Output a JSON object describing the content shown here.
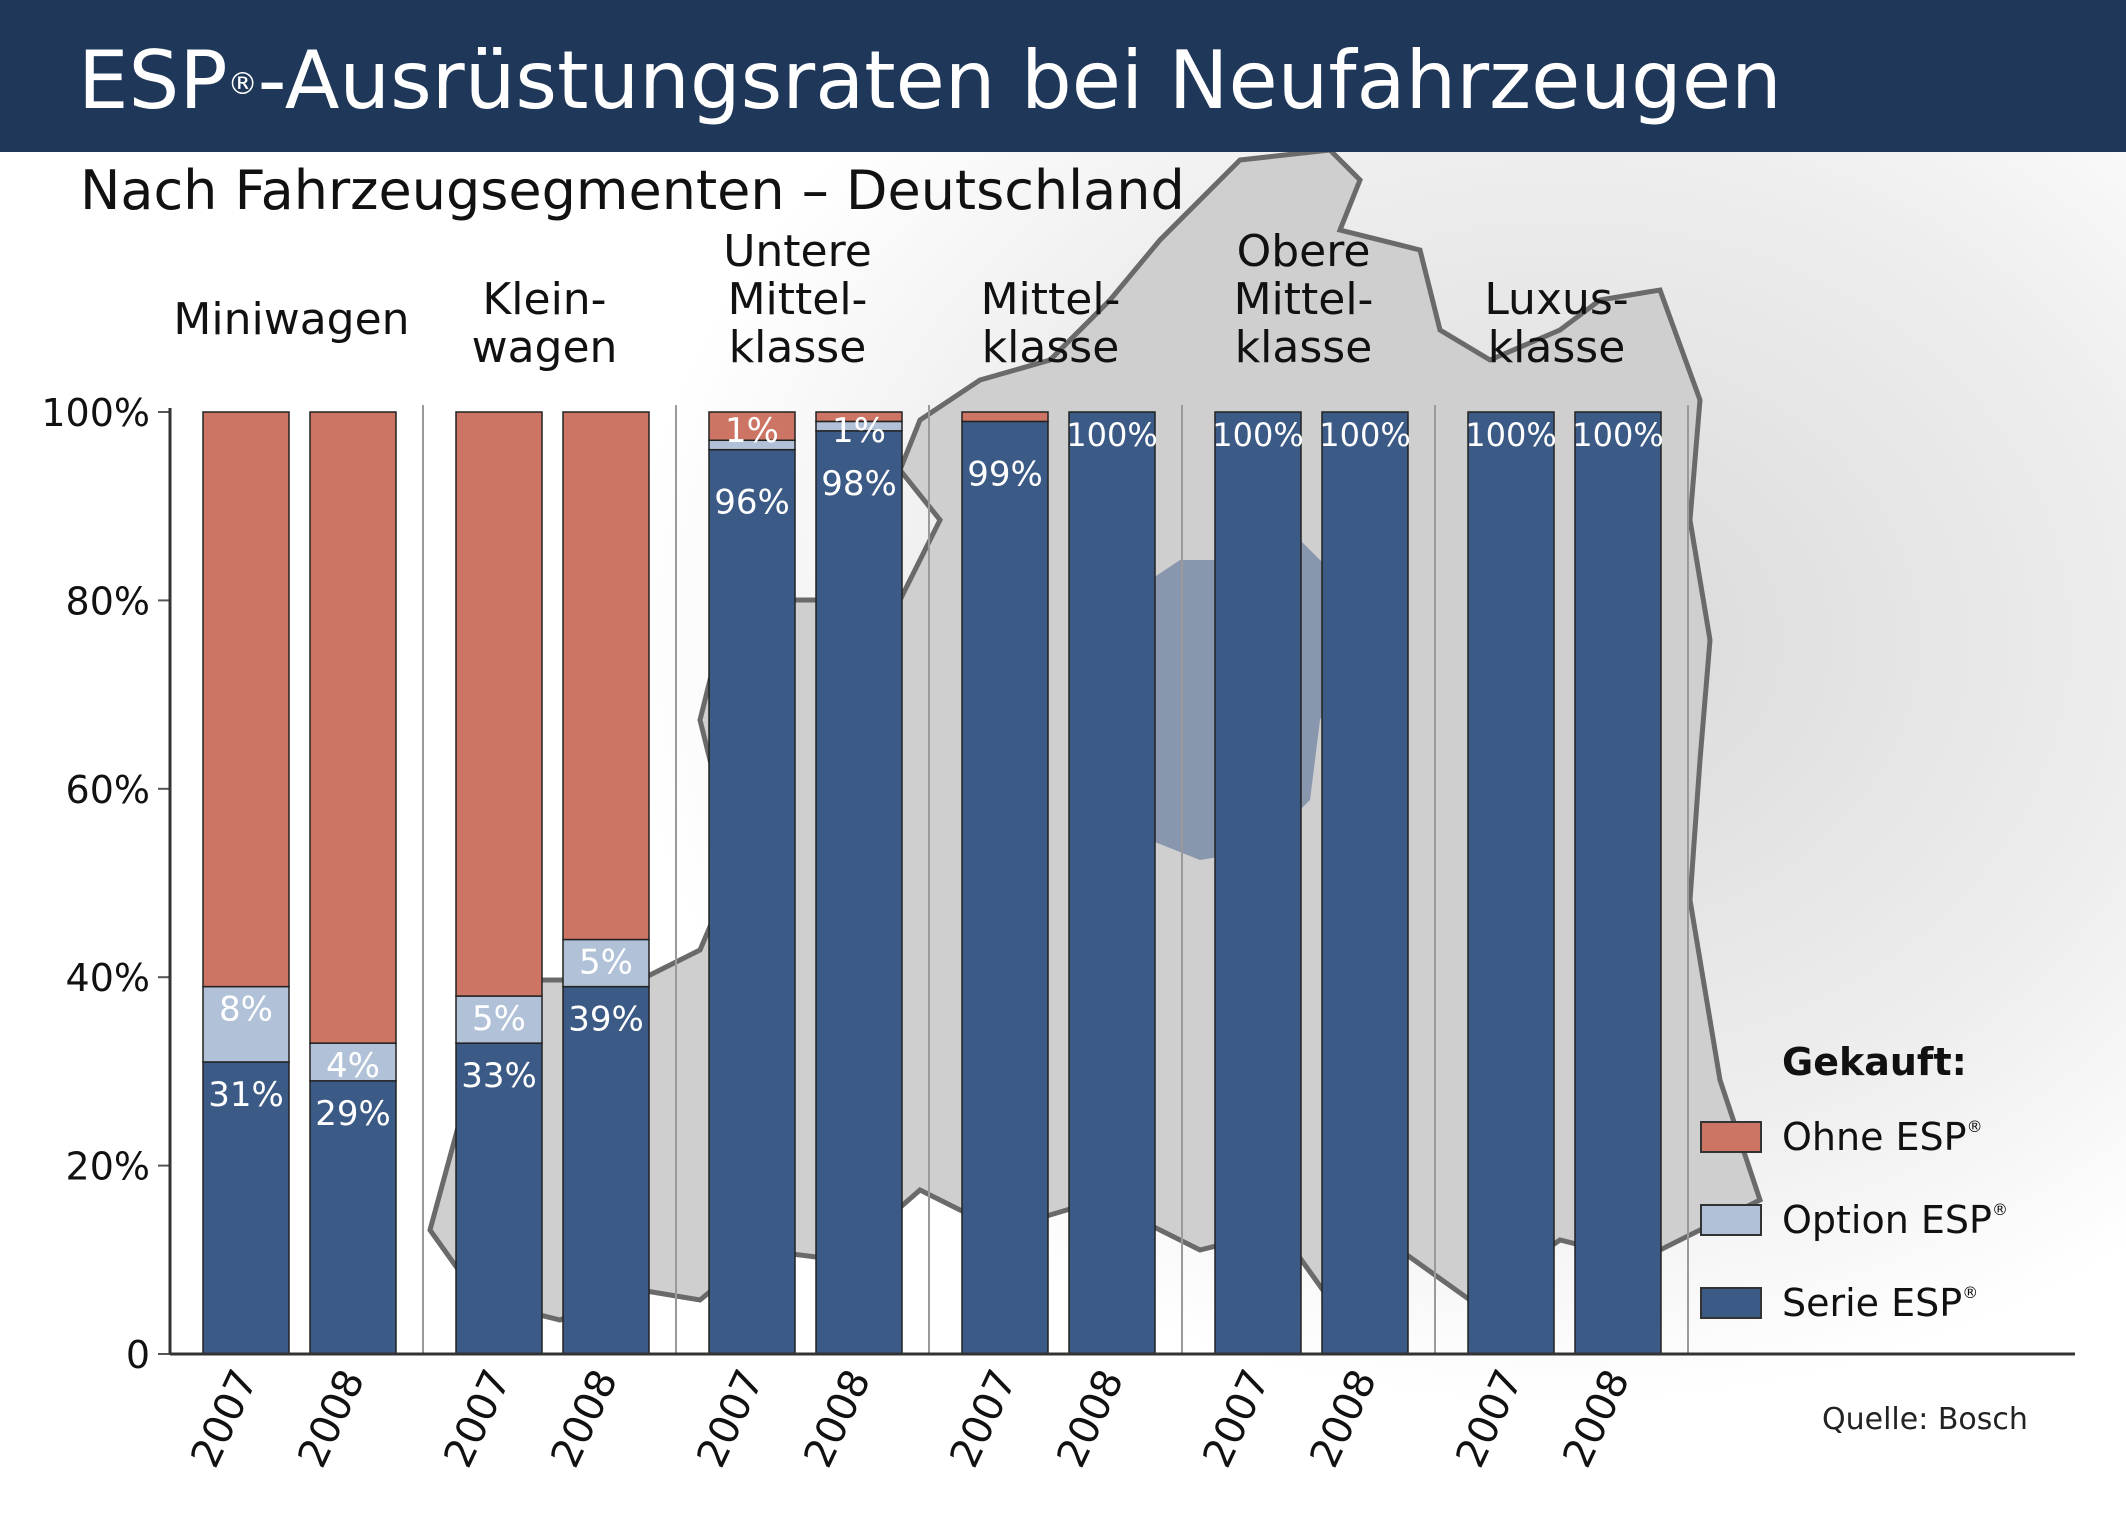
{
  "title_main": "ESP",
  "title_reg": "®",
  "title_rest": "-Ausrüstungsraten bei Neufahrzeugen",
  "subtitle": "Nach Fahrzeugsegmenten – Deutschland",
  "colors": {
    "header_bg": "#1f3759",
    "ohne": "#cd7565",
    "option": "#b1c2d8",
    "serie": "#3b5a85"
  },
  "legend": {
    "title": "Gekauft:",
    "reg": "®",
    "items": [
      {
        "key": "ohne",
        "label": "Ohne ESP",
        "color": "#cd7565"
      },
      {
        "key": "option",
        "label": "Option ESP",
        "color": "#b1c2d8"
      },
      {
        "key": "serie",
        "label": "Serie ESP",
        "color": "#3b5a85"
      }
    ]
  },
  "source": "Quelle: Bosch",
  "chart_data": {
    "type": "bar",
    "stacked": true,
    "ylim": [
      0,
      100
    ],
    "yticks": [
      "0",
      "20%",
      "40%",
      "60%",
      "80%",
      "100%"
    ],
    "ytick_values": [
      0,
      20,
      40,
      60,
      80,
      100
    ],
    "grid": false,
    "groups": [
      {
        "label_lines": [
          "Miniwagen"
        ],
        "years": [
          "2007",
          "2008"
        ],
        "serie": [
          31,
          29
        ],
        "option": [
          8,
          4
        ],
        "ohne": [
          61,
          67
        ],
        "serie_labels": [
          "31%",
          "29%"
        ],
        "option_labels": [
          "8%",
          "4%"
        ]
      },
      {
        "label_lines": [
          "Klein-",
          "wagen"
        ],
        "years": [
          "2007",
          "2008"
        ],
        "serie": [
          33,
          39
        ],
        "option": [
          5,
          5
        ],
        "ohne": [
          62,
          56
        ],
        "serie_labels": [
          "33%",
          "39%"
        ],
        "option_labels": [
          "5%",
          "5%"
        ]
      },
      {
        "label_lines": [
          "Untere",
          "Mittel-",
          "klasse"
        ],
        "years": [
          "2007",
          "2008"
        ],
        "serie": [
          96,
          98
        ],
        "option": [
          1,
          1
        ],
        "ohne": [
          3,
          1
        ],
        "serie_labels": [
          "96%",
          "98%"
        ],
        "option_labels": [
          "1%",
          "1%"
        ]
      },
      {
        "label_lines": [
          "Mittel-",
          "klasse"
        ],
        "years": [
          "2007",
          "2008"
        ],
        "serie": [
          99,
          100
        ],
        "option": [
          0,
          0
        ],
        "ohne": [
          1,
          0
        ],
        "serie_labels": [
          "99%",
          "100%"
        ],
        "option_labels": [
          "",
          ""
        ]
      },
      {
        "label_lines": [
          "Obere",
          "Mittel-",
          "klasse"
        ],
        "years": [
          "2007",
          "2008"
        ],
        "serie": [
          100,
          100
        ],
        "option": [
          0,
          0
        ],
        "ohne": [
          0,
          0
        ],
        "serie_labels": [
          "100%",
          "100%"
        ],
        "option_labels": [
          "",
          ""
        ]
      },
      {
        "label_lines": [
          "Luxus-",
          "klasse"
        ],
        "years": [
          "2007",
          "2008"
        ],
        "serie": [
          100,
          100
        ],
        "option": [
          0,
          0
        ],
        "ohne": [
          0,
          0
        ],
        "serie_labels": [
          "100%",
          "100%"
        ],
        "option_labels": [
          "",
          ""
        ]
      }
    ]
  }
}
